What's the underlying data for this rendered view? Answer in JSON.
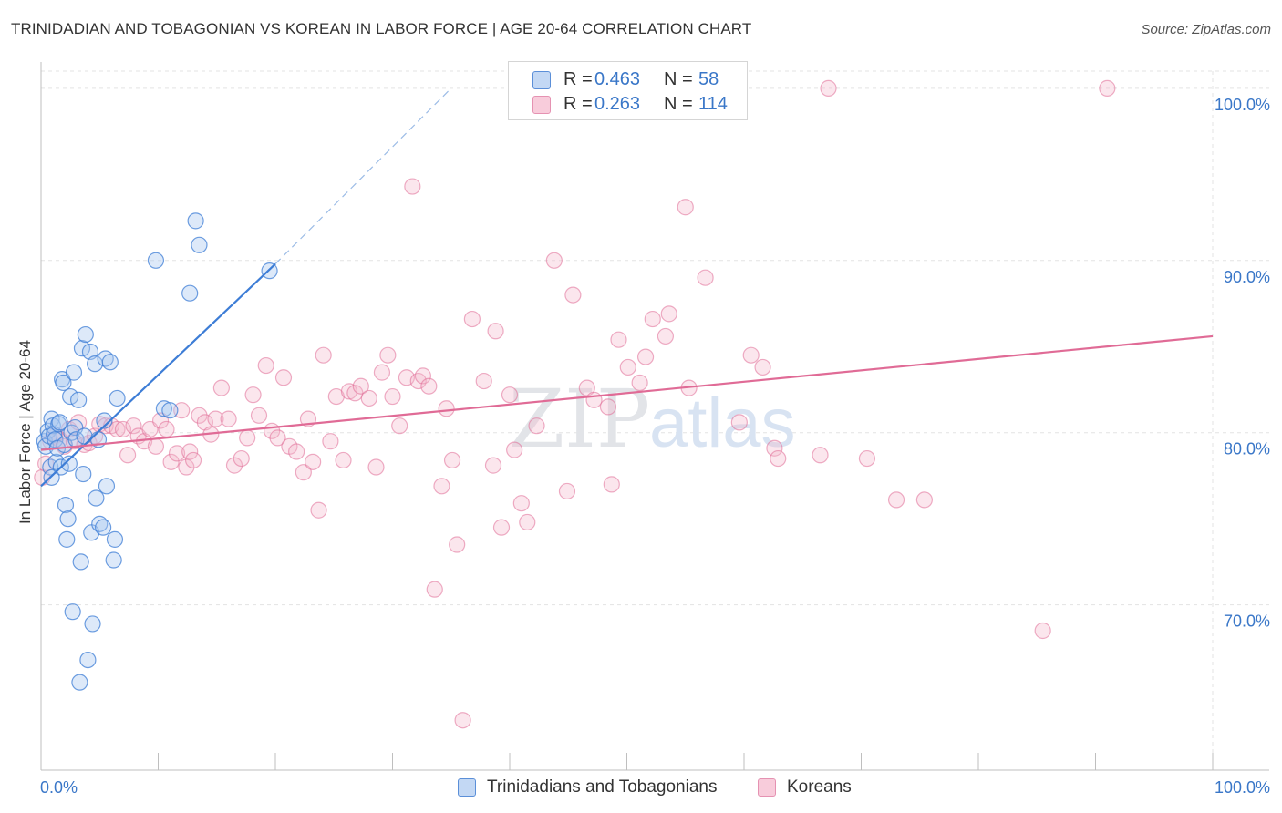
{
  "header": {
    "title": "TRINIDADIAN AND TOBAGONIAN VS KOREAN IN LABOR FORCE | AGE 20-64 CORRELATION CHART",
    "source": "Source: ZipAtlas.com"
  },
  "watermark": "ZIPatlas",
  "legend": {
    "rows": [
      {
        "r_label": "R =",
        "r_value": "0.463",
        "n_label": "N =",
        "n_value": "58"
      },
      {
        "r_label": "R =",
        "r_value": "0.263",
        "n_label": "N =",
        "n_value": "114"
      }
    ]
  },
  "bottom_legend": {
    "series1": "Trinidadians and Tobagonians",
    "series2": "Koreans"
  },
  "chart_data": {
    "type": "scatter",
    "title": "TRINIDADIAN AND TOBAGONIAN VS KOREAN IN LABOR FORCE | AGE 20-64 CORRELATION CHART",
    "xlabel": "",
    "ylabel": "In Labor Force | Age 20-64",
    "xlim": [
      0,
      100
    ],
    "ylim": [
      60.4,
      101
    ],
    "x_tick_labels": [
      "0.0%",
      "100.0%"
    ],
    "y_ticks": [
      70,
      80,
      90,
      100
    ],
    "y_tick_labels": [
      "70.0%",
      "80.0%",
      "90.0%",
      "100.0%"
    ],
    "grid": true,
    "colors": {
      "series1": "#3d7dd6",
      "series1_fill": "#a9c8ef",
      "series2": "#e06b96",
      "series2_fill": "#f4b6cb",
      "tick_text": "#3a77c8"
    },
    "series": [
      {
        "name": "Trinidadians and Tobagonians",
        "trend": {
          "x": [
            0,
            20
          ],
          "y": [
            76.9,
            89.8
          ]
        },
        "trend_extension": {
          "x": [
            20,
            35
          ],
          "y": [
            89.8,
            100
          ]
        },
        "points": [
          [
            0.3,
            79.5
          ],
          [
            0.4,
            79.2
          ],
          [
            0.6,
            80.1
          ],
          [
            0.7,
            79.8
          ],
          [
            0.8,
            78.0
          ],
          [
            0.9,
            80.8
          ],
          [
            1.0,
            80.4
          ],
          [
            1.1,
            79.9
          ],
          [
            1.2,
            79.6
          ],
          [
            1.3,
            78.3
          ],
          [
            1.4,
            79.1
          ],
          [
            1.5,
            80.5
          ],
          [
            1.6,
            80.6
          ],
          [
            1.7,
            78.0
          ],
          [
            1.8,
            83.1
          ],
          [
            1.9,
            82.9
          ],
          [
            2.0,
            79.3
          ],
          [
            2.1,
            75.8
          ],
          [
            2.2,
            73.8
          ],
          [
            2.3,
            75.0
          ],
          [
            2.4,
            78.2
          ],
          [
            2.5,
            82.1
          ],
          [
            2.6,
            80.0
          ],
          [
            2.7,
            69.6
          ],
          [
            2.8,
            83.5
          ],
          [
            2.9,
            80.3
          ],
          [
            3.0,
            79.6
          ],
          [
            3.2,
            81.9
          ],
          [
            3.3,
            65.5
          ],
          [
            3.4,
            72.5
          ],
          [
            3.5,
            84.9
          ],
          [
            3.6,
            77.6
          ],
          [
            3.7,
            79.8
          ],
          [
            3.8,
            85.7
          ],
          [
            4.0,
            66.8
          ],
          [
            4.2,
            84.7
          ],
          [
            4.3,
            74.2
          ],
          [
            4.4,
            68.9
          ],
          [
            4.6,
            84.0
          ],
          [
            4.7,
            76.2
          ],
          [
            4.9,
            79.6
          ],
          [
            5.0,
            74.7
          ],
          [
            5.3,
            74.5
          ],
          [
            5.4,
            80.7
          ],
          [
            5.5,
            84.3
          ],
          [
            5.6,
            76.9
          ],
          [
            5.9,
            84.1
          ],
          [
            6.2,
            72.6
          ],
          [
            6.3,
            73.8
          ],
          [
            6.5,
            82.0
          ],
          [
            9.8,
            90.0
          ],
          [
            10.5,
            81.4
          ],
          [
            11.0,
            81.3
          ],
          [
            12.7,
            88.1
          ],
          [
            13.2,
            92.3
          ],
          [
            13.5,
            90.9
          ],
          [
            19.5,
            89.4
          ],
          [
            0.9,
            77.4
          ]
        ]
      },
      {
        "name": "Koreans",
        "trend": {
          "x": [
            0,
            100
          ],
          "y": [
            79.0,
            85.6
          ]
        },
        "points": [
          [
            0.1,
            77.4
          ],
          [
            0.4,
            78.2
          ],
          [
            0.8,
            79.5
          ],
          [
            1.2,
            79.8
          ],
          [
            1.6,
            79.6
          ],
          [
            2.0,
            79.2
          ],
          [
            2.4,
            80.2
          ],
          [
            2.8,
            79.5
          ],
          [
            3.2,
            80.6
          ],
          [
            3.7,
            79.3
          ],
          [
            4.1,
            79.4
          ],
          [
            4.6,
            79.8
          ],
          [
            5.0,
            80.5
          ],
          [
            5.5,
            80.4
          ],
          [
            6.0,
            80.4
          ],
          [
            6.5,
            80.2
          ],
          [
            7.0,
            80.2
          ],
          [
            7.4,
            78.7
          ],
          [
            7.9,
            80.4
          ],
          [
            8.3,
            79.8
          ],
          [
            8.8,
            79.5
          ],
          [
            9.3,
            80.2
          ],
          [
            9.8,
            79.2
          ],
          [
            10.2,
            80.7
          ],
          [
            10.7,
            80.2
          ],
          [
            11.1,
            78.3
          ],
          [
            11.6,
            78.8
          ],
          [
            12.0,
            81.3
          ],
          [
            12.4,
            78.0
          ],
          [
            12.7,
            78.9
          ],
          [
            13.0,
            78.4
          ],
          [
            13.5,
            81.0
          ],
          [
            14.0,
            80.6
          ],
          [
            14.5,
            79.9
          ],
          [
            14.9,
            80.8
          ],
          [
            15.4,
            82.6
          ],
          [
            16.0,
            80.8
          ],
          [
            16.5,
            78.1
          ],
          [
            17.1,
            78.5
          ],
          [
            17.6,
            79.7
          ],
          [
            18.1,
            82.2
          ],
          [
            18.6,
            81.0
          ],
          [
            19.2,
            83.9
          ],
          [
            19.7,
            80.1
          ],
          [
            20.2,
            79.7
          ],
          [
            20.7,
            83.2
          ],
          [
            21.2,
            79.2
          ],
          [
            21.8,
            78.9
          ],
          [
            22.4,
            77.7
          ],
          [
            22.8,
            80.8
          ],
          [
            23.2,
            78.3
          ],
          [
            23.7,
            75.5
          ],
          [
            24.1,
            84.5
          ],
          [
            24.7,
            79.5
          ],
          [
            25.2,
            82.1
          ],
          [
            25.8,
            78.4
          ],
          [
            26.3,
            82.4
          ],
          [
            26.8,
            82.3
          ],
          [
            27.3,
            82.7
          ],
          [
            28.0,
            82.0
          ],
          [
            28.6,
            78.0
          ],
          [
            29.1,
            83.5
          ],
          [
            29.6,
            84.5
          ],
          [
            30.0,
            82.1
          ],
          [
            30.6,
            80.4
          ],
          [
            31.2,
            83.2
          ],
          [
            31.7,
            94.3
          ],
          [
            32.2,
            83.0
          ],
          [
            32.6,
            83.3
          ],
          [
            33.1,
            82.7
          ],
          [
            33.6,
            70.9
          ],
          [
            34.2,
            76.9
          ],
          [
            34.6,
            81.4
          ],
          [
            35.1,
            78.4
          ],
          [
            35.5,
            73.5
          ],
          [
            36.0,
            63.3
          ],
          [
            36.8,
            86.6
          ],
          [
            37.8,
            83.0
          ],
          [
            38.6,
            78.1
          ],
          [
            38.8,
            85.9
          ],
          [
            39.3,
            74.5
          ],
          [
            40.0,
            82.2
          ],
          [
            40.4,
            79.0
          ],
          [
            41.0,
            75.9
          ],
          [
            41.5,
            74.8
          ],
          [
            42.3,
            80.4
          ],
          [
            43.8,
            90.0
          ],
          [
            44.9,
            76.6
          ],
          [
            45.4,
            88.0
          ],
          [
            46.6,
            82.6
          ],
          [
            47.2,
            81.9
          ],
          [
            48.4,
            81.5
          ],
          [
            48.7,
            77.0
          ],
          [
            49.3,
            85.4
          ],
          [
            50.1,
            83.8
          ],
          [
            51.1,
            82.9
          ],
          [
            51.6,
            84.4
          ],
          [
            52.2,
            86.6
          ],
          [
            53.3,
            85.6
          ],
          [
            53.6,
            86.9
          ],
          [
            55.0,
            93.1
          ],
          [
            55.3,
            82.6
          ],
          [
            56.7,
            89.0
          ],
          [
            59.6,
            80.6
          ],
          [
            60.6,
            84.5
          ],
          [
            61.6,
            83.8
          ],
          [
            62.6,
            79.1
          ],
          [
            62.9,
            78.5
          ],
          [
            66.5,
            78.7
          ],
          [
            67.2,
            100.0
          ],
          [
            70.5,
            78.5
          ],
          [
            73.0,
            76.1
          ],
          [
            75.4,
            76.1
          ],
          [
            85.5,
            68.5
          ],
          [
            91.0,
            100.0
          ]
        ]
      }
    ]
  }
}
